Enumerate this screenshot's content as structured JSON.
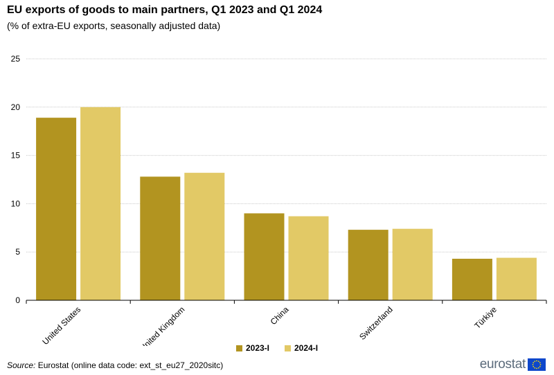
{
  "header": {
    "title": "EU exports of goods to main partners, Q1 2023 and Q1 2024",
    "subtitle": "(% of extra-EU exports, seasonally adjusted data)"
  },
  "chart_data": {
    "type": "bar",
    "categories": [
      "United States",
      "United Kingdom",
      "China",
      "Switzerland",
      "Türkiye"
    ],
    "series": [
      {
        "name": "2023-I",
        "values": [
          18.9,
          12.8,
          9.0,
          7.3,
          4.3
        ],
        "color": "#b29420"
      },
      {
        "name": "2024-I",
        "values": [
          20.0,
          13.2,
          8.7,
          7.4,
          4.4
        ],
        "color": "#e2c966"
      }
    ],
    "ylim": [
      0,
      25
    ],
    "yticks": [
      0,
      5,
      10,
      15,
      20,
      25
    ],
    "grid": true,
    "legend_position": "bottom-center"
  },
  "footer": {
    "source_label": "Source:",
    "source_text": " Eurostat (online data code: ext_st_eu27_2020sitc)",
    "logo_text": "eurostat"
  }
}
